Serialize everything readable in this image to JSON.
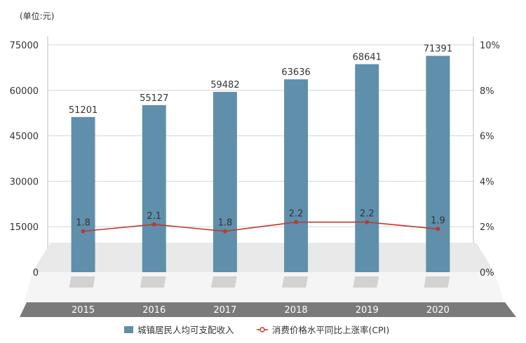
{
  "chart_data": {
    "type": "bar",
    "unit_label": "(单位:元)",
    "categories": [
      "2015",
      "2016",
      "2017",
      "2018",
      "2019",
      "2020"
    ],
    "ylim": [
      0,
      75000
    ],
    "y_ticks": [
      "0",
      "15000",
      "30000",
      "45000",
      "60000",
      "75000"
    ],
    "y2lim": [
      0,
      10
    ],
    "y2_ticks": [
      "0%",
      "2%",
      "4%",
      "6%",
      "8%",
      "10%"
    ],
    "series": [
      {
        "name": "城镇居民人均可支配收入",
        "type": "bar",
        "axis": "left",
        "values": [
          51201,
          55127,
          59482,
          63636,
          68641,
          71391
        ],
        "labels": [
          "51201",
          "55127",
          "59482",
          "63636",
          "68641",
          "71391"
        ]
      },
      {
        "name": "消费价格水平同比上涨率(CPI)",
        "type": "line",
        "axis": "right",
        "values": [
          1.8,
          2.1,
          1.8,
          2.2,
          2.2,
          1.9
        ],
        "labels": [
          "1.8",
          "2.1",
          "1.8",
          "2.2",
          "2.2",
          "1.9"
        ]
      }
    ],
    "grid": true,
    "legend_position": "bottom",
    "colors": {
      "bar": "#5f8fab",
      "line": "#c0392b"
    }
  }
}
